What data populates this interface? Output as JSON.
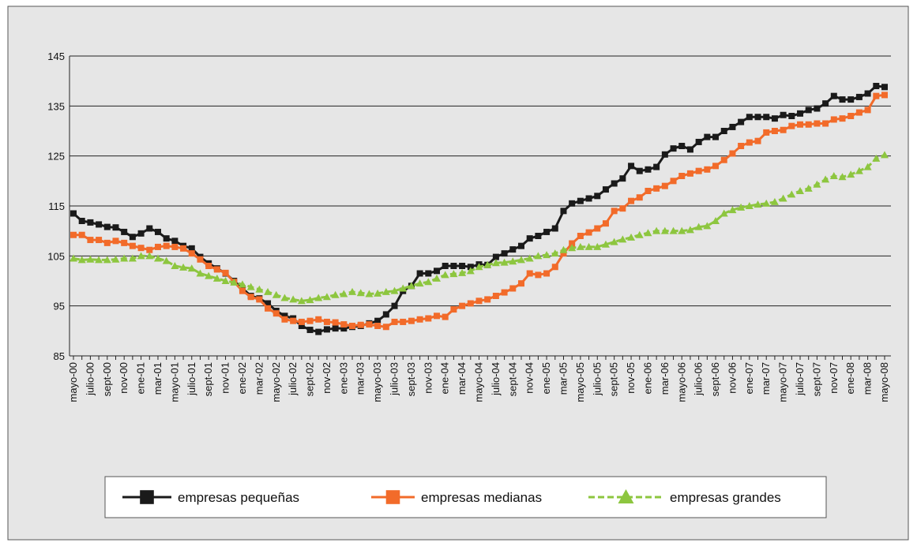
{
  "chart_data": {
    "type": "line",
    "categories": [
      "mayo-00",
      null,
      "julio-00",
      null,
      "sept-00",
      null,
      "nov-00",
      null,
      "ene-01",
      null,
      "mar-01",
      null,
      "mayo-01",
      null,
      "julio-01",
      null,
      "sept-01",
      null,
      "nov-01",
      null,
      "ene-02",
      null,
      "mar-02",
      null,
      "mayo-02",
      null,
      "julio-02",
      null,
      "sept-02",
      null,
      "nov-02",
      null,
      "ene-03",
      null,
      "mar-03",
      null,
      "mayo-03",
      null,
      "julio-03",
      null,
      "sept-03",
      null,
      "nov-03",
      null,
      "ene-04",
      null,
      "mar-04",
      null,
      "mayo-04",
      null,
      "julio-04",
      null,
      "sept-04",
      null,
      "nov-04",
      null,
      "ene-05",
      null,
      "mar-05",
      null,
      "mayo-05",
      null,
      "julio-05",
      null,
      "sept-05",
      null,
      "nov-05",
      null,
      "ene-06",
      null,
      "mar-06",
      null,
      "mayo-06",
      null,
      "julio-06",
      null,
      "sept-06",
      null,
      "nov-06",
      null,
      "ene-07",
      null,
      "mar-07",
      null,
      "mayo-07",
      null,
      "julio-07",
      null,
      "sept-07",
      null,
      "nov-07",
      null,
      "ene-08",
      null,
      "mar-08",
      null,
      "mayo-08"
    ],
    "series": [
      {
        "name": "empresas pequeñas",
        "color": "#1a1a1a",
        "marker": "square",
        "dash": false,
        "values": [
          113.5,
          112,
          111.7,
          111.3,
          110.8,
          110.7,
          109.8,
          108.8,
          109.5,
          110.5,
          109.8,
          108.5,
          108,
          107,
          106.5,
          104.8,
          103.5,
          102.5,
          101.5,
          100,
          98.5,
          97,
          96.5,
          95.5,
          94,
          93,
          92.5,
          91,
          90.2,
          89.8,
          90.3,
          90.5,
          90.5,
          90.8,
          91,
          91.5,
          92,
          93.3,
          95,
          98,
          99,
          101.5,
          101.5,
          102,
          103,
          103,
          103,
          102.8,
          103.3,
          103.2,
          104.8,
          105.5,
          106.3,
          107,
          108.5,
          109,
          109.8,
          110.5,
          114,
          115.5,
          116,
          116.5,
          117,
          118.3,
          119.5,
          120.5,
          123,
          122,
          122.3,
          122.8,
          125.3,
          126.5,
          127,
          126.3,
          127.8,
          128.8,
          128.8,
          130,
          130.8,
          131.8,
          132.8,
          132.8,
          132.8,
          132.5,
          133.2,
          133,
          133.5,
          134.2,
          134.5,
          135.5,
          137,
          136.3,
          136.3,
          136.8,
          137.5,
          139,
          138.8
        ]
      },
      {
        "name": "empresas medianas",
        "color": "#f26b2a",
        "marker": "square",
        "dash": false,
        "values": [
          109.2,
          109.2,
          108.2,
          108.2,
          107.6,
          108,
          107.6,
          107,
          106.6,
          106.2,
          106.8,
          107,
          106.8,
          106.5,
          105.5,
          104.3,
          103,
          102.3,
          101.6,
          99.8,
          98,
          96.8,
          96.3,
          94.5,
          93.5,
          92.3,
          92,
          91.8,
          92,
          92.3,
          91.8,
          91.7,
          91.3,
          91,
          91.2,
          91.3,
          91,
          90.8,
          91.8,
          91.8,
          92,
          92.3,
          92.5,
          93,
          92.8,
          94.3,
          95,
          95.5,
          96,
          96.3,
          97,
          97.7,
          98.5,
          99.5,
          101.5,
          101.2,
          101.5,
          102.8,
          105.5,
          107.5,
          109,
          109.7,
          110.5,
          111.5,
          114,
          114.5,
          116,
          116.7,
          118,
          118.5,
          119,
          120,
          121,
          121.5,
          122,
          122.3,
          123,
          124.2,
          125.5,
          127,
          127.7,
          128,
          129.7,
          130,
          130.2,
          131,
          131.3,
          131.3,
          131.5,
          131.5,
          132.3,
          132.5,
          133,
          133.7,
          134.2,
          137,
          137.2
        ]
      },
      {
        "name": "empresas grandes",
        "color": "#8dc63f",
        "marker": "triangle",
        "dash": true,
        "values": [
          104.5,
          104.2,
          104.3,
          104.2,
          104.2,
          104.3,
          104.5,
          104.5,
          105,
          105,
          104.5,
          104,
          103,
          102.7,
          102.5,
          101.5,
          101,
          100.5,
          100,
          99.7,
          99.3,
          98.8,
          98.3,
          97.8,
          97.2,
          96.6,
          96.3,
          96,
          96.2,
          96.6,
          96.8,
          97.2,
          97.4,
          97.8,
          97.6,
          97.4,
          97.5,
          97.8,
          98,
          98.5,
          99,
          99.5,
          99.8,
          100.5,
          101.2,
          101.4,
          101.6,
          102,
          102.8,
          103.2,
          103.6,
          103.7,
          103.9,
          104.2,
          104.5,
          105,
          105.2,
          105.5,
          106.2,
          106.6,
          106.8,
          106.8,
          106.8,
          107.3,
          107.8,
          108.3,
          108.7,
          109.2,
          109.6,
          110,
          110,
          110,
          110,
          110.2,
          110.8,
          111,
          112,
          113.5,
          114.2,
          114.7,
          115,
          115.3,
          115.5,
          115.8,
          116.5,
          117.3,
          118,
          118.5,
          119.3,
          120.3,
          121,
          120.8,
          121.3,
          122,
          122.8,
          124.5,
          125.2
        ]
      }
    ],
    "ylim": [
      85,
      145
    ],
    "yticks": [
      85,
      95,
      105,
      115,
      125,
      135,
      145
    ],
    "grid": true,
    "legend": "bottom"
  }
}
